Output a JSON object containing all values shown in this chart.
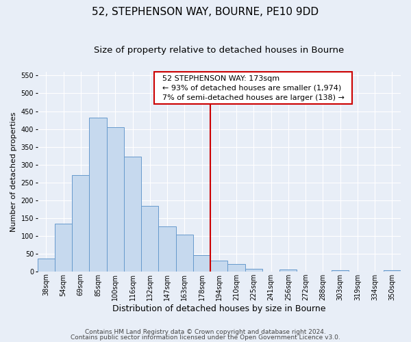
{
  "title": "52, STEPHENSON WAY, BOURNE, PE10 9DD",
  "subtitle": "Size of property relative to detached houses in Bourne",
  "xlabel": "Distribution of detached houses by size in Bourne",
  "ylabel": "Number of detached properties",
  "bin_labels": [
    "38sqm",
    "54sqm",
    "69sqm",
    "85sqm",
    "100sqm",
    "116sqm",
    "132sqm",
    "147sqm",
    "163sqm",
    "178sqm",
    "194sqm",
    "210sqm",
    "225sqm",
    "241sqm",
    "256sqm",
    "272sqm",
    "288sqm",
    "303sqm",
    "319sqm",
    "334sqm",
    "350sqm"
  ],
  "bar_heights": [
    35,
    133,
    271,
    432,
    404,
    322,
    184,
    127,
    104,
    46,
    30,
    20,
    8,
    0,
    5,
    0,
    0,
    3,
    0,
    0,
    3
  ],
  "bar_color": "#c6d9ee",
  "bar_edge_color": "#6699cc",
  "property_line_label": "52 STEPHENSON WAY: 173sqm",
  "annotation_line1": "← 93% of detached houses are smaller (1,974)",
  "annotation_line2": "7% of semi-detached houses are larger (138) →",
  "annotation_box_color": "#ffffff",
  "annotation_box_edge": "#cc0000",
  "vline_color": "#cc0000",
  "vline_x_index": 9,
  "ylim": [
    0,
    560
  ],
  "yticks": [
    0,
    50,
    100,
    150,
    200,
    250,
    300,
    350,
    400,
    450,
    500,
    550
  ],
  "footnote1": "Contains HM Land Registry data © Crown copyright and database right 2024.",
  "footnote2": "Contains public sector information licensed under the Open Government Licence v3.0.",
  "background_color": "#e8eef7",
  "plot_bg_color": "#e8eef7",
  "grid_color": "#ffffff",
  "title_fontsize": 11,
  "subtitle_fontsize": 9.5,
  "xlabel_fontsize": 9,
  "ylabel_fontsize": 8,
  "tick_fontsize": 7,
  "annot_fontsize": 8,
  "footnote_fontsize": 6.5
}
